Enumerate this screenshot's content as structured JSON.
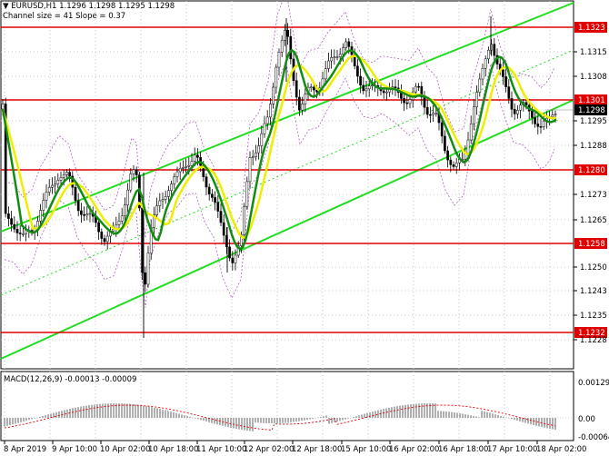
{
  "header": {
    "symbol_line": "EURUSD,H1  1.1296 1.1298 1.1295 1.1298",
    "channel_line": "Channel size = 41 Slope = 0.37"
  },
  "price_axis": {
    "ticks": [
      "1.1323",
      "1.1315",
      "1.1308",
      "1.1301",
      "1.1298",
      "1.1295",
      "1.1288",
      "1.1280",
      "1.1273",
      "1.1265",
      "1.1258",
      "1.1250",
      "1.1243",
      "1.1235",
      "1.1232",
      "1.1228"
    ]
  },
  "levels": [
    {
      "label": "1.1323",
      "color": "#e00000"
    },
    {
      "label": "1.1301",
      "color": "#e00000"
    },
    {
      "label": "1.1280",
      "color": "#e00000"
    },
    {
      "label": "1.1258",
      "color": "#e00000"
    },
    {
      "label": "1.1232",
      "color": "#e00000"
    }
  ],
  "current_price": {
    "label": "1.1298"
  },
  "macd": {
    "label": "MACD(12,26,9) -0.00013 -0.00009",
    "ticks": [
      "0.00129",
      "0.00",
      "-0.00064"
    ]
  },
  "time_axis": {
    "labels": [
      "8 Apr 2019",
      "9 Apr 10:00",
      "10 Apr 02:00",
      "10 Apr 18:00",
      "11 Apr 10:00",
      "12 Apr 02:00",
      "12 Apr 18:00",
      "15 Apr 10:00",
      "16 Apr 02:00",
      "16 Apr 18:00",
      "17 Apr 10:00",
      "18 Apr 02:00"
    ]
  },
  "colors": {
    "candle": "#000000",
    "channel": "#22dd22",
    "ma_slow": "#148c14",
    "ma_fast": "#eeee00",
    "envelope": "#b060c0",
    "resistance": "#e00000",
    "macd_hist": "#b0b0b0",
    "macd_signal": "#e00000"
  }
}
